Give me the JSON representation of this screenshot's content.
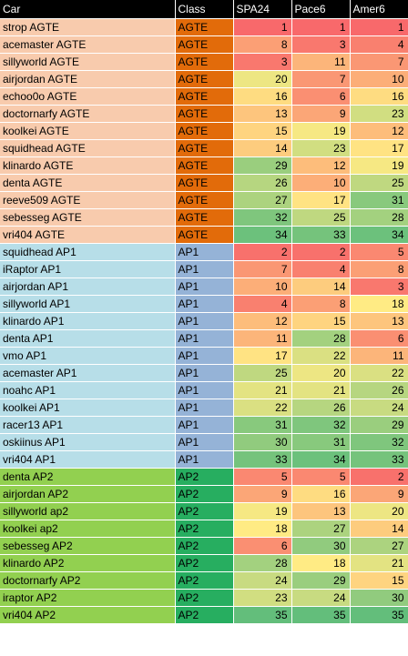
{
  "headers": [
    "Car",
    "Class",
    "SPA24",
    "Pace6",
    "Amer6"
  ],
  "class_colors": {
    "AGTE": {
      "car_bg": "#f8cbad",
      "class_bg": "#e26b0a"
    },
    "AP1": {
      "car_bg": "#b7dee8",
      "class_bg": "#95b3d7"
    },
    "AP2": {
      "car_bg": "#92d050",
      "class_bg": "#27ae60"
    }
  },
  "scale": {
    "min": 1,
    "max": 35,
    "low_color": "#f8696b",
    "mid_color": "#ffeb84",
    "high_color": "#63be7b"
  },
  "rows": [
    {
      "car": "strop AGTE",
      "class": "AGTE",
      "spa24": 1,
      "pace6": 1,
      "amer6": 1
    },
    {
      "car": "acemaster AGTE",
      "class": "AGTE",
      "spa24": 8,
      "pace6": 3,
      "amer6": 4
    },
    {
      "car": "sillyworld AGTE",
      "class": "AGTE",
      "spa24": 3,
      "pace6": 11,
      "amer6": 7
    },
    {
      "car": "airjordan AGTE",
      "class": "AGTE",
      "spa24": 20,
      "pace6": 7,
      "amer6": 10
    },
    {
      "car": "echoo0o AGTE",
      "class": "AGTE",
      "spa24": 16,
      "pace6": 6,
      "amer6": 16
    },
    {
      "car": "doctornarfy AGTE",
      "class": "AGTE",
      "spa24": 13,
      "pace6": 9,
      "amer6": 23
    },
    {
      "car": "koolkei AGTE",
      "class": "AGTE",
      "spa24": 15,
      "pace6": 19,
      "amer6": 12
    },
    {
      "car": "squidhead AGTE",
      "class": "AGTE",
      "spa24": 14,
      "pace6": 23,
      "amer6": 17
    },
    {
      "car": "klinardo AGTE",
      "class": "AGTE",
      "spa24": 29,
      "pace6": 12,
      "amer6": 19
    },
    {
      "car": "denta AGTE",
      "class": "AGTE",
      "spa24": 26,
      "pace6": 10,
      "amer6": 25
    },
    {
      "car": "reeve509 AGTE",
      "class": "AGTE",
      "spa24": 27,
      "pace6": 17,
      "amer6": 31
    },
    {
      "car": "sebesseg AGTE",
      "class": "AGTE",
      "spa24": 32,
      "pace6": 25,
      "amer6": 28
    },
    {
      "car": "vri404 AGTE",
      "class": "AGTE",
      "spa24": 34,
      "pace6": 33,
      "amer6": 34
    },
    {
      "car": "squidhead AP1",
      "class": "AP1",
      "spa24": 2,
      "pace6": 2,
      "amer6": 5
    },
    {
      "car": "iRaptor AP1",
      "class": "AP1",
      "spa24": 7,
      "pace6": 4,
      "amer6": 8
    },
    {
      "car": "airjordan AP1",
      "class": "AP1",
      "spa24": 10,
      "pace6": 14,
      "amer6": 3
    },
    {
      "car": "sillyworld AP1",
      "class": "AP1",
      "spa24": 4,
      "pace6": 8,
      "amer6": 18
    },
    {
      "car": "klinardo AP1",
      "class": "AP1",
      "spa24": 12,
      "pace6": 15,
      "amer6": 13
    },
    {
      "car": "denta AP1",
      "class": "AP1",
      "spa24": 11,
      "pace6": 28,
      "amer6": 6
    },
    {
      "car": "vmo AP1",
      "class": "AP1",
      "spa24": 17,
      "pace6": 22,
      "amer6": 11
    },
    {
      "car": "acemaster AP1",
      "class": "AP1",
      "spa24": 25,
      "pace6": 20,
      "amer6": 22
    },
    {
      "car": "noahc AP1",
      "class": "AP1",
      "spa24": 21,
      "pace6": 21,
      "amer6": 26
    },
    {
      "car": "koolkei AP1",
      "class": "AP1",
      "spa24": 22,
      "pace6": 26,
      "amer6": 24
    },
    {
      "car": "racer13 AP1",
      "class": "AP1",
      "spa24": 31,
      "pace6": 32,
      "amer6": 29
    },
    {
      "car": "oskiinus AP1",
      "class": "AP1",
      "spa24": 30,
      "pace6": 31,
      "amer6": 32
    },
    {
      "car": "vri404 AP1",
      "class": "AP1",
      "spa24": 33,
      "pace6": 34,
      "amer6": 33
    },
    {
      "car": "denta AP2",
      "class": "AP2",
      "spa24": 5,
      "pace6": 5,
      "amer6": 2
    },
    {
      "car": "airjordan AP2",
      "class": "AP2",
      "spa24": 9,
      "pace6": 16,
      "amer6": 9
    },
    {
      "car": "sillyworld ap2",
      "class": "AP2",
      "spa24": 19,
      "pace6": 13,
      "amer6": 20
    },
    {
      "car": "koolkei ap2",
      "class": "AP2",
      "spa24": 18,
      "pace6": 27,
      "amer6": 14
    },
    {
      "car": "sebesseg AP2",
      "class": "AP2",
      "spa24": 6,
      "pace6": 30,
      "amer6": 27
    },
    {
      "car": "klinardo AP2",
      "class": "AP2",
      "spa24": 28,
      "pace6": 18,
      "amer6": 21
    },
    {
      "car": "doctornarfy AP2",
      "class": "AP2",
      "spa24": 24,
      "pace6": 29,
      "amer6": 15
    },
    {
      "car": "iraptor AP2",
      "class": "AP2",
      "spa24": 23,
      "pace6": 24,
      "amer6": 30
    },
    {
      "car": "vri404 AP2",
      "class": "AP2",
      "spa24": 35,
      "pace6": 35,
      "amer6": 35
    }
  ]
}
